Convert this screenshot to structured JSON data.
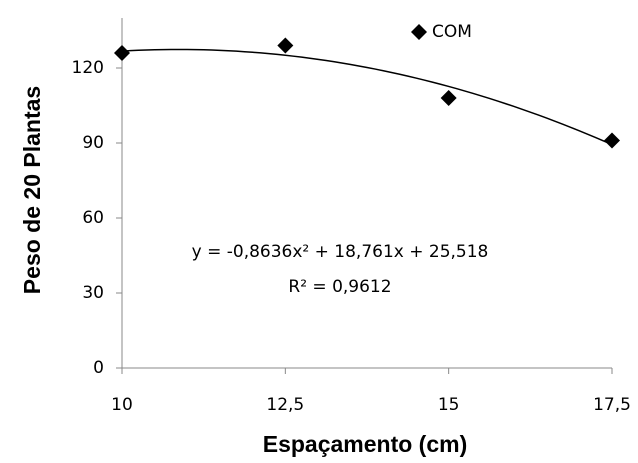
{
  "chart_data": {
    "type": "scatter",
    "x_label": "Espaçamento (cm)",
    "y_label": "Peso de 20 Plantas",
    "series": [
      {
        "name": "COM",
        "color": "#000000",
        "x": [
          10,
          12.5,
          15,
          17.5
        ],
        "values": [
          126,
          129,
          108,
          91
        ]
      }
    ],
    "xlim": [
      10,
      17.5
    ],
    "xticks": [
      10,
      {
        "value": 12.5,
        "label": "12,5"
      },
      15,
      {
        "value": 17.5,
        "label": "17,5"
      }
    ],
    "ylim": [
      0,
      140
    ],
    "yticks": [
      0,
      30,
      60,
      90,
      120
    ],
    "trendline": {
      "type": "polynomial",
      "coefficients": [
        -0.8636,
        18.761,
        25.518
      ],
      "color": "#000000"
    },
    "annotations": [
      "y = -0,8636x² + 18,761x + 25,518",
      "R² = 0,9612"
    ],
    "legend": "top-right"
  }
}
